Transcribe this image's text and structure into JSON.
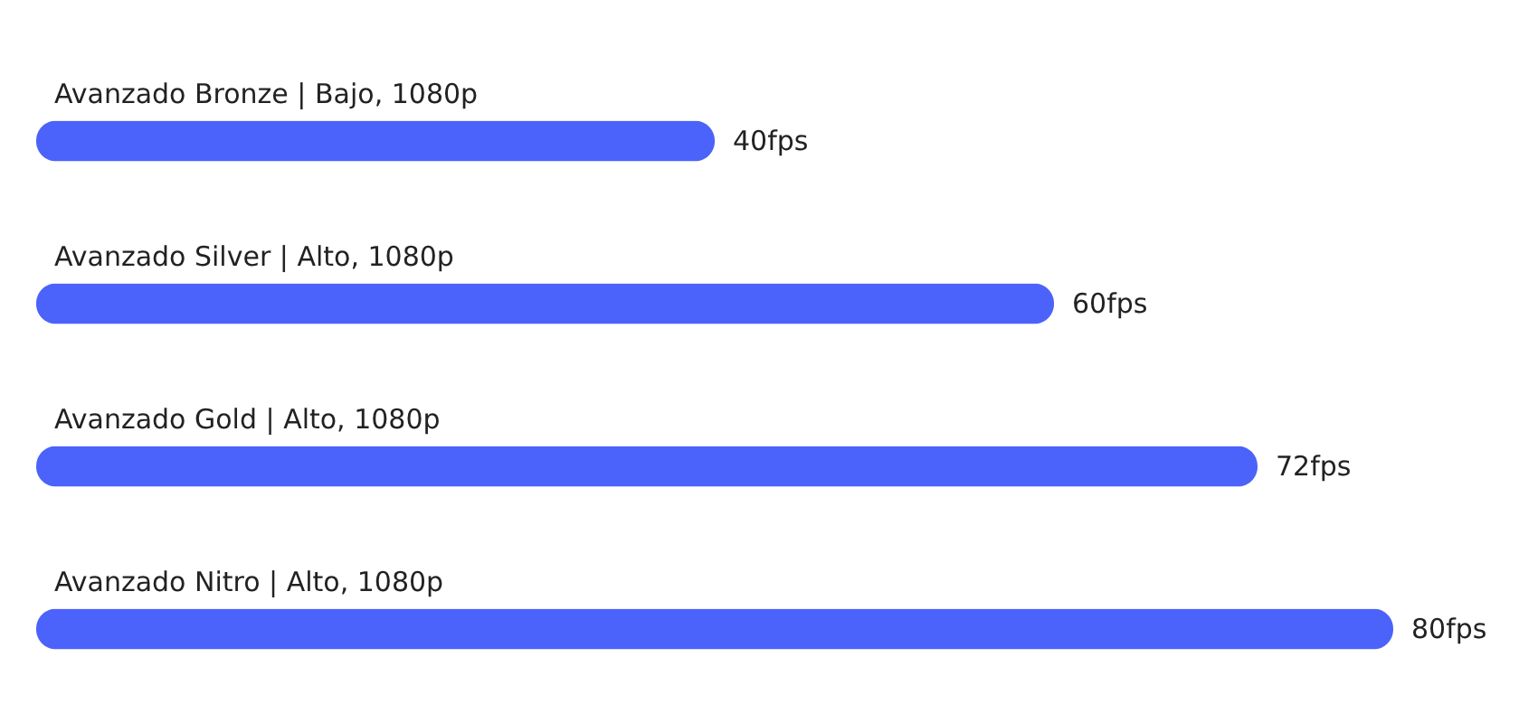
{
  "chart_data": {
    "type": "bar",
    "orientation": "horizontal",
    "categories": [
      "Avanzado Bronze | Bajo, 1080p",
      "Avanzado Silver | Alto, 1080p",
      "Avanzado Gold | Alto, 1080p",
      "Avanzado Nitro | Alto, 1080p"
    ],
    "values": [
      40,
      60,
      72,
      80
    ],
    "value_labels": [
      "40fps",
      "60fps",
      "72fps",
      "80fps"
    ],
    "color": "#4b63fa",
    "xlim": [
      0,
      80
    ]
  }
}
